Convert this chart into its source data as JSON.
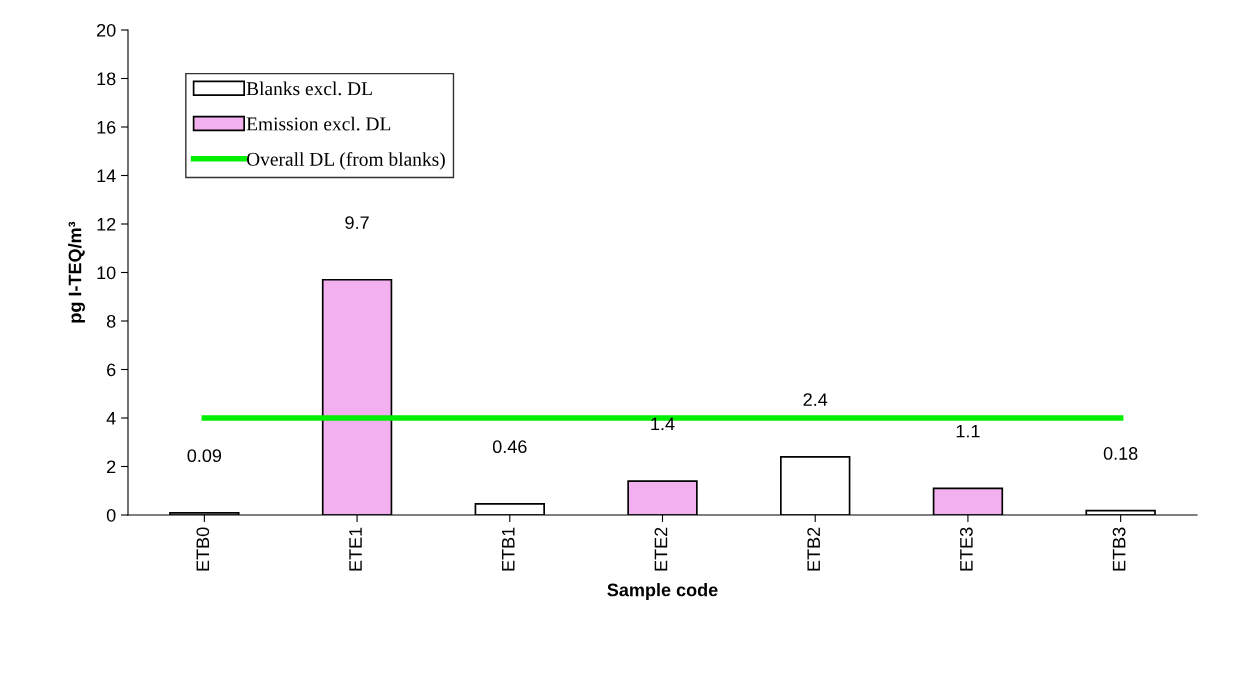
{
  "chart_data": {
    "type": "bar",
    "xlabel": "Sample code",
    "ylabel": "pg I-TEQ/m³",
    "categories": [
      "ETB0",
      "ETE1",
      "ETB1",
      "ETE2",
      "ETB2",
      "ETE3",
      "ETB3"
    ],
    "stacked": true,
    "series": [
      {
        "name": "Blanks excl. DL",
        "color": "#ffffff",
        "values": [
          0.09,
          null,
          0.46,
          null,
          2.4,
          null,
          0.18
        ]
      },
      {
        "name": "Emission excl. DL",
        "color": "#f2b0ee",
        "values": [
          null,
          9.7,
          null,
          1.4,
          null,
          1.1,
          null
        ]
      },
      {
        "name": "Overall DL (from blanks)",
        "type": "line",
        "color": "#00ee00",
        "values": [
          4,
          4,
          4,
          4,
          4,
          4,
          4
        ]
      }
    ],
    "value_labels": [
      "0.09",
      "9.7",
      "0.46",
      "1.4",
      "2.4",
      "1.1",
      "0.18"
    ],
    "ylim": [
      0,
      20
    ],
    "yticks": [
      0,
      2,
      4,
      6,
      8,
      10,
      12,
      14,
      16,
      18,
      20
    ],
    "grid": false,
    "legend": "top left"
  }
}
